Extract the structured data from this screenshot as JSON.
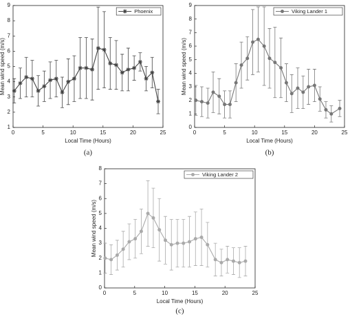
{
  "chart_data": [
    {
      "type": "line",
      "caption": "(a)",
      "xlabel": "Local Time (Hours)",
      "ylabel": "Mean wind speed (m/s)",
      "xlim": [
        0,
        25
      ],
      "xticks": [
        0,
        5,
        10,
        15,
        20,
        25
      ],
      "ylim": [
        1,
        9
      ],
      "yticks": [
        1,
        2,
        3,
        4,
        5,
        6,
        7,
        8,
        9
      ],
      "legend": "upper right",
      "marker": "star",
      "series": [
        {
          "name": "Phoenix",
          "color": "#444444",
          "x": [
            0.2,
            1.2,
            2.2,
            3.2,
            4.2,
            5.2,
            6.2,
            7.2,
            8.2,
            9.2,
            10.2,
            11.2,
            12.2,
            13.2,
            14.2,
            15.2,
            16.2,
            17.2,
            18.2,
            19.2,
            20.2,
            21.2,
            22.2,
            23.2,
            24.2
          ],
          "values": [
            3.4,
            3.9,
            4.3,
            4.2,
            3.4,
            3.7,
            4.1,
            4.2,
            3.3,
            4.0,
            4.2,
            4.9,
            4.9,
            4.8,
            6.2,
            6.1,
            5.2,
            5.1,
            4.6,
            4.8,
            4.9,
            5.3,
            4.2,
            4.6,
            2.7
          ],
          "errors": [
            0.8,
            1.0,
            1.3,
            1.2,
            1.0,
            1.0,
            1.2,
            1.2,
            1.0,
            1.5,
            1.5,
            2.0,
            2.0,
            2.0,
            2.7,
            2.5,
            1.7,
            1.6,
            1.2,
            1.4,
            0.8,
            0.6,
            0.8,
            1.0,
            0.8
          ]
        }
      ]
    },
    {
      "type": "line",
      "caption": "(b)",
      "xlabel": "Local Time (Hours)",
      "ylabel": "Mean wind speed (m/s)",
      "xlim": [
        0,
        25
      ],
      "xticks": [
        0,
        5,
        10,
        15,
        20,
        25
      ],
      "ylim": [
        0,
        9
      ],
      "yticks": [
        0,
        1,
        2,
        3,
        4,
        5,
        6,
        7,
        8,
        9
      ],
      "legend": "upper right",
      "marker": "circle",
      "series": [
        {
          "name": "Viking Lander 1",
          "color": "#777777",
          "x": [
            0.2,
            1.2,
            2.2,
            3.1,
            4.1,
            5.0,
            5.9,
            6.9,
            7.8,
            8.8,
            9.7,
            10.6,
            11.6,
            12.5,
            13.4,
            14.4,
            15.3,
            16.2,
            17.2,
            18.1,
            19.0,
            20.0,
            20.9,
            21.9,
            22.8,
            24.2
          ],
          "values": [
            2.0,
            1.9,
            1.8,
            2.6,
            2.3,
            1.7,
            1.7,
            3.3,
            4.6,
            5.1,
            6.3,
            6.5,
            6.0,
            5.1,
            4.8,
            4.4,
            3.3,
            2.5,
            2.9,
            2.6,
            3.0,
            3.1,
            2.1,
            1.3,
            1.0,
            1.4
          ],
          "errors": [
            1.1,
            1.1,
            1.1,
            1.5,
            1.3,
            1.0,
            1.0,
            1.4,
            1.7,
            1.6,
            2.4,
            2.4,
            2.9,
            2.2,
            2.6,
            2.2,
            1.4,
            1.4,
            1.5,
            1.2,
            1.3,
            1.2,
            0.9,
            0.6,
            0.6,
            0.6
          ]
        }
      ]
    },
    {
      "type": "line",
      "caption": "(c)",
      "xlabel": "Local Time (Hours)",
      "ylabel": "Mean wind speed (m/s)",
      "xlim": [
        0,
        25
      ],
      "xticks": [
        0,
        5,
        10,
        15,
        20,
        25
      ],
      "ylim": [
        0,
        8
      ],
      "yticks": [
        0,
        1,
        2,
        3,
        4,
        5,
        6,
        7,
        8
      ],
      "legend": "upper right",
      "marker": "circle",
      "series": [
        {
          "name": "Viking Lander 2",
          "color": "#aaaaaa",
          "x": [
            0.1,
            1.1,
            2.1,
            3.1,
            4.1,
            5.1,
            6.1,
            7.2,
            8.1,
            9.1,
            10.1,
            11.1,
            12.1,
            13.1,
            14.1,
            15.1,
            16.1,
            17.1,
            18.4,
            19.4,
            20.4,
            21.4,
            22.4,
            23.4
          ],
          "values": [
            2.0,
            1.9,
            2.2,
            2.6,
            3.1,
            3.3,
            3.8,
            5.0,
            4.7,
            3.9,
            3.2,
            2.9,
            3.0,
            3.0,
            3.1,
            3.3,
            3.4,
            2.9,
            1.9,
            1.7,
            1.9,
            1.8,
            1.7,
            1.8
          ],
          "errors": [
            1.0,
            1.0,
            1.0,
            1.2,
            1.2,
            1.3,
            1.5,
            2.2,
            2.0,
            2.1,
            1.6,
            1.7,
            1.6,
            1.6,
            1.7,
            1.8,
            1.9,
            1.5,
            1.1,
            0.9,
            0.9,
            0.9,
            1.0,
            1.0
          ]
        }
      ]
    }
  ]
}
